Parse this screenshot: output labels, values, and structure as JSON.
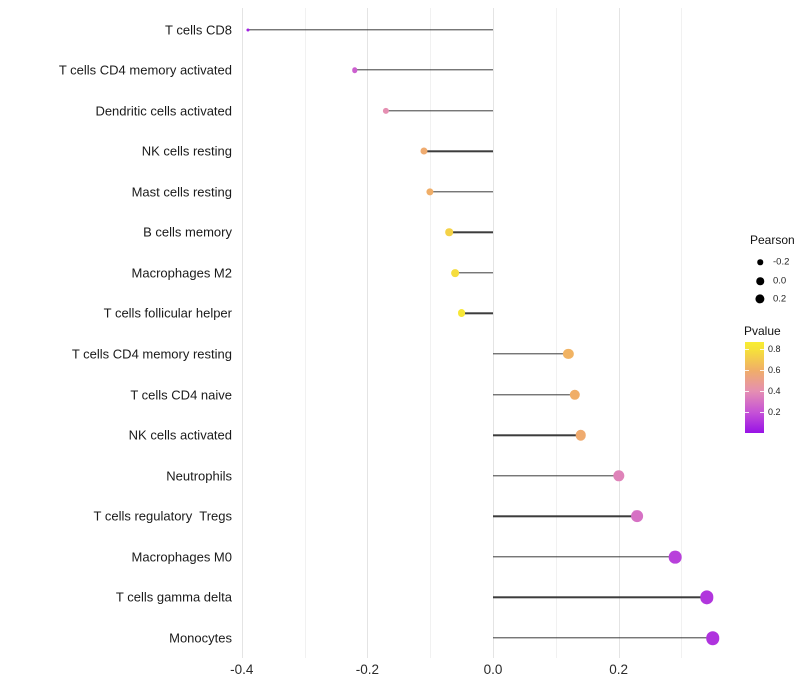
{
  "chart_data": {
    "type": "lollipop",
    "title": "",
    "xlabel": "",
    "ylabel": "",
    "orientation": "horizontal",
    "grid": "vertical-only",
    "x_axis": {
      "range_shown": [
        -0.45,
        0.4
      ],
      "major_ticks": [
        {
          "value": -0.4,
          "label": "-0.4"
        },
        {
          "value": -0.2,
          "label": "-0.2"
        },
        {
          "value": 0.0,
          "label": "0.0"
        },
        {
          "value": 0.2,
          "label": "0.2"
        }
      ],
      "minor_ticks": [
        -0.3,
        -0.1,
        0.1,
        0.3
      ]
    },
    "baseline": 0.0,
    "points": [
      {
        "label": "T cells CD8",
        "pearson": -0.39,
        "pvalue": 0.04
      },
      {
        "label": "T cells CD4 memory activated",
        "pearson": -0.22,
        "pvalue": 0.24
      },
      {
        "label": "Dendritic cells activated",
        "pearson": -0.17,
        "pvalue": 0.4
      },
      {
        "label": "NK cells resting",
        "pearson": -0.11,
        "pvalue": 0.58
      },
      {
        "label": "Mast cells resting",
        "pearson": -0.1,
        "pvalue": 0.6
      },
      {
        "label": "B cells memory",
        "pearson": -0.07,
        "pvalue": 0.74
      },
      {
        "label": "Macrophages M2",
        "pearson": -0.06,
        "pvalue": 0.78
      },
      {
        "label": "T cells follicular helper",
        "pearson": -0.05,
        "pvalue": 0.83
      },
      {
        "label": "T cells CD4 memory resting",
        "pearson": 0.12,
        "pvalue": 0.62
      },
      {
        "label": "T cells CD4 naive",
        "pearson": 0.13,
        "pvalue": 0.6
      },
      {
        "label": "NK cells activated",
        "pearson": 0.14,
        "pvalue": 0.58
      },
      {
        "label": "Neutrophils",
        "pearson": 0.2,
        "pvalue": 0.36
      },
      {
        "label": "T cells regulatory  Tregs",
        "pearson": 0.23,
        "pvalue": 0.3
      },
      {
        "label": "Macrophages M0",
        "pearson": 0.29,
        "pvalue": 0.14
      },
      {
        "label": "T cells gamma delta",
        "pearson": 0.34,
        "pvalue": 0.11
      },
      {
        "label": "Monocytes",
        "pearson": 0.35,
        "pvalue": 0.1
      }
    ],
    "legend": {
      "size": {
        "title": "Pearson",
        "entries": [
          {
            "value": -0.2,
            "label": "-0.2"
          },
          {
            "value": 0.0,
            "label": "0.0"
          },
          {
            "value": 0.2,
            "label": "0.2"
          }
        ]
      },
      "color": {
        "title": "Pvalue",
        "ticks": [
          {
            "value": 0.8,
            "label": "0.8"
          },
          {
            "value": 0.6,
            "label": "0.6"
          },
          {
            "value": 0.4,
            "label": "0.4"
          },
          {
            "value": 0.2,
            "label": "0.2"
          }
        ],
        "bar_range": [
          0.0,
          0.87
        ],
        "gradient_stops": [
          {
            "p": 0.0,
            "color": "#9812E6"
          },
          {
            "p": 0.2,
            "color": "#C653D6"
          },
          {
            "p": 0.4,
            "color": "#E58FB2"
          },
          {
            "p": 0.6,
            "color": "#F0AE68"
          },
          {
            "p": 0.8,
            "color": "#F6E239"
          },
          {
            "p": 0.87,
            "color": "#F8ED33"
          }
        ]
      }
    },
    "style_colors": {
      "stem": "#3c3c3c",
      "grid_major": "#e4e4e4",
      "grid_minor": "#f1f1f1",
      "legend_dot": "#000000"
    }
  }
}
